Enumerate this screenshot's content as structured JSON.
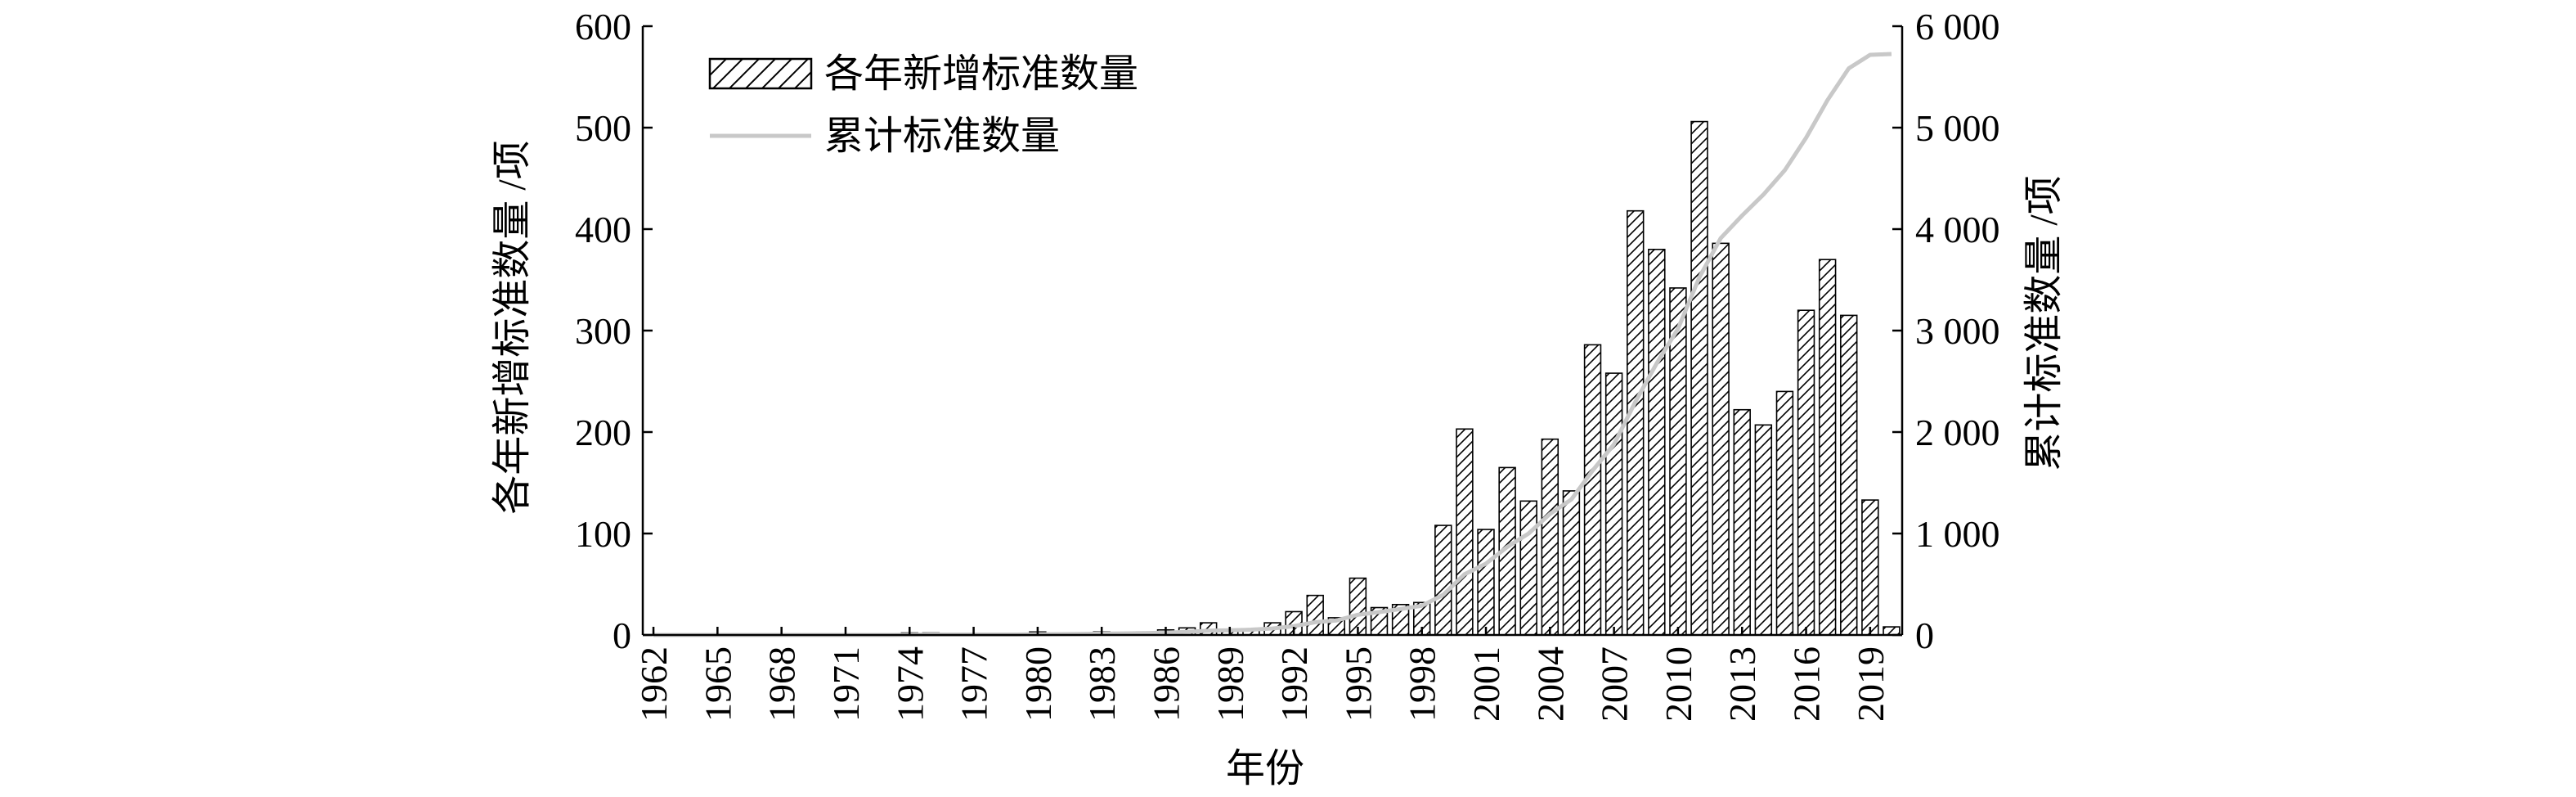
{
  "chart_data": {
    "type": "bar",
    "title": "",
    "xlabel": "年份",
    "ylabel_left": "各年新增标准数量 /项",
    "ylabel_right": "累计标准数量 /项",
    "x": [
      1962,
      1963,
      1964,
      1965,
      1966,
      1967,
      1968,
      1969,
      1970,
      1971,
      1972,
      1973,
      1974,
      1975,
      1976,
      1977,
      1978,
      1979,
      1980,
      1981,
      1982,
      1983,
      1984,
      1985,
      1986,
      1987,
      1988,
      1989,
      1990,
      1991,
      1992,
      1993,
      1994,
      1995,
      1996,
      1997,
      1998,
      1999,
      2000,
      2001,
      2002,
      2003,
      2004,
      2005,
      2006,
      2007,
      2008,
      2009,
      2010,
      2011,
      2012,
      2013,
      2014,
      2015,
      2016,
      2017,
      2018,
      2019,
      2020
    ],
    "x_tick_labels": [
      "1962",
      "1965",
      "1968",
      "1971",
      "1974",
      "1977",
      "1980",
      "1983",
      "1986",
      "1989",
      "1992",
      "1995",
      "1998",
      "2001",
      "2004",
      "2007",
      "2010",
      "2013",
      "2016",
      "2019"
    ],
    "ylim_left": [
      0,
      600
    ],
    "yticks_left": [
      "0",
      "100",
      "200",
      "300",
      "400",
      "500",
      "600"
    ],
    "ylim_right": [
      0,
      6000
    ],
    "yticks_right": [
      "0",
      "1 000",
      "2 000",
      "3 000",
      "4 000",
      "5 000",
      "6 000"
    ],
    "legend_position": "top-left",
    "grid": false,
    "series": [
      {
        "name": "各年新增标准数量",
        "type": "bar",
        "axis": "left",
        "pattern": "diagonal-hatch",
        "values": [
          0,
          0,
          0,
          0,
          0,
          0,
          0,
          0,
          0,
          0,
          0,
          0,
          2,
          2,
          0,
          0,
          0,
          0,
          3,
          1,
          2,
          3,
          2,
          3,
          5,
          7,
          12,
          4,
          6,
          12,
          23,
          39,
          17,
          56,
          27,
          30,
          32,
          108,
          203,
          104,
          165,
          132,
          193,
          142,
          286,
          258,
          418,
          380,
          342,
          506,
          386,
          222,
          207,
          240,
          320,
          370,
          315,
          133,
          8
        ]
      },
      {
        "name": "累计标准数量",
        "type": "line",
        "axis": "right",
        "color": "#c8c8c8",
        "values": [
          0,
          0,
          0,
          0,
          0,
          0,
          0,
          0,
          0,
          0,
          0,
          0,
          2,
          4,
          4,
          4,
          4,
          4,
          7,
          8,
          10,
          13,
          15,
          18,
          23,
          30,
          42,
          46,
          52,
          64,
          87,
          126,
          143,
          199,
          226,
          256,
          288,
          396,
          599,
          703,
          868,
          1000,
          1193,
          1335,
          1621,
          1879,
          2297,
          2677,
          3019,
          3525,
          3911,
          4133,
          4340,
          4580,
          4900,
          5270,
          5585,
          5718,
          5726
        ]
      }
    ]
  }
}
